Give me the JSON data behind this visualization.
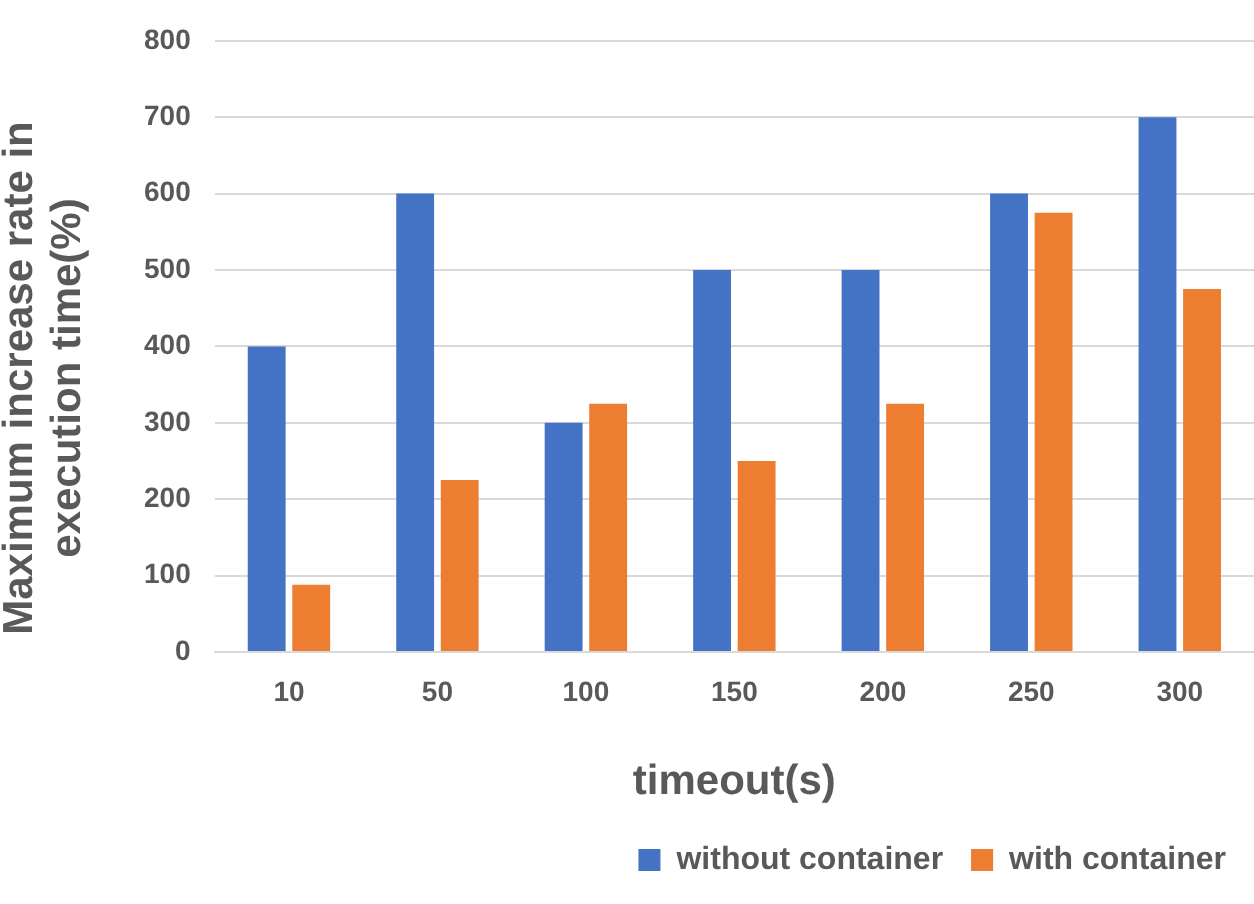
{
  "chart_data": {
    "type": "bar",
    "xlabel": "timeout(s)",
    "ylabel": "Maximum increase rate in execution time(%)",
    "categories": [
      "10",
      "50",
      "100",
      "150",
      "200",
      "250",
      "300"
    ],
    "series": [
      {
        "name": "without container",
        "color": "#4472c4",
        "values": [
          400,
          600,
          300,
          500,
          500,
          600,
          700
        ]
      },
      {
        "name": "with container",
        "color": "#ed7d31",
        "values": [
          88,
          225,
          325,
          250,
          325,
          575,
          475
        ]
      }
    ],
    "ylim": [
      0,
      800
    ],
    "yticks": [
      0,
      100,
      200,
      300,
      400,
      500,
      600,
      700,
      800
    ],
    "grid": "y",
    "legend": "bottom right"
  }
}
